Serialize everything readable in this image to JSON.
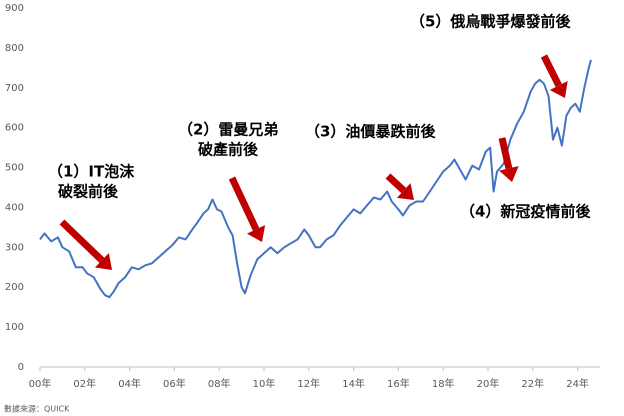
{
  "chart_data": {
    "type": "line",
    "annotations": [
      [
        "（1）IT泡沫",
        "破裂前後"
      ],
      [
        "（2）雷曼兄弟",
        "破產前後"
      ],
      [
        "（3）油價暴跌前後"
      ],
      [
        "（4）新冠疫情前後"
      ],
      [
        "（5）俄烏戰爭爆發前後"
      ]
    ],
    "source": "數據來源：QUICK",
    "xlim": [
      0,
      25
    ],
    "xticks": [
      {
        "value": 0,
        "label": "00年"
      },
      {
        "value": 2,
        "label": "02年"
      },
      {
        "value": 4,
        "label": "04年"
      },
      {
        "value": 6,
        "label": "06年"
      },
      {
        "value": 8,
        "label": "08年"
      },
      {
        "value": 10,
        "label": "10年"
      },
      {
        "value": 12,
        "label": "12年"
      },
      {
        "value": 14,
        "label": "14年"
      },
      {
        "value": 16,
        "label": "16年"
      },
      {
        "value": 18,
        "label": "18年"
      },
      {
        "value": 20,
        "label": "20年"
      },
      {
        "value": 22,
        "label": "22年"
      },
      {
        "value": 24,
        "label": "24年"
      }
    ],
    "ylim": [
      0,
      900
    ],
    "yticks": [
      0,
      100,
      200,
      300,
      400,
      500,
      600,
      700,
      800,
      900
    ],
    "x": [
      0.0,
      0.2,
      0.5,
      0.8,
      1.0,
      1.3,
      1.6,
      1.9,
      2.1,
      2.4,
      2.7,
      2.9,
      3.1,
      3.3,
      3.5,
      3.8,
      4.1,
      4.4,
      4.7,
      5.0,
      5.3,
      5.6,
      5.9,
      6.2,
      6.5,
      6.8,
      7.0,
      7.3,
      7.5,
      7.7,
      7.9,
      8.1,
      8.4,
      8.6,
      8.8,
      9.0,
      9.15,
      9.4,
      9.7,
      10.0,
      10.3,
      10.6,
      10.9,
      11.2,
      11.5,
      11.8,
      12.0,
      12.3,
      12.5,
      12.8,
      13.1,
      13.4,
      13.7,
      14.0,
      14.3,
      14.6,
      14.9,
      15.2,
      15.5,
      15.7,
      16.0,
      16.2,
      16.5,
      16.8,
      17.1,
      17.4,
      17.7,
      18.0,
      18.3,
      18.5,
      18.8,
      19.0,
      19.3,
      19.6,
      19.9,
      20.1,
      20.25,
      20.4,
      20.7,
      21.0,
      21.3,
      21.6,
      21.9,
      22.1,
      22.3,
      22.5,
      22.7,
      22.9,
      23.1,
      23.3,
      23.5,
      23.7,
      23.9,
      24.1,
      24.3,
      24.5,
      24.6
    ],
    "series": [
      {
        "color": "#4472c4",
        "values": [
          320,
          335,
          315,
          325,
          300,
          290,
          250,
          250,
          235,
          225,
          195,
          180,
          175,
          190,
          210,
          225,
          250,
          245,
          255,
          260,
          275,
          290,
          305,
          325,
          320,
          345,
          360,
          385,
          395,
          420,
          395,
          390,
          350,
          330,
          260,
          200,
          185,
          230,
          270,
          285,
          300,
          285,
          300,
          310,
          320,
          345,
          330,
          300,
          300,
          320,
          330,
          355,
          375,
          395,
          385,
          405,
          425,
          420,
          440,
          415,
          395,
          380,
          405,
          415,
          415,
          440,
          465,
          490,
          505,
          520,
          490,
          470,
          505,
          495,
          540,
          550,
          440,
          490,
          510,
          570,
          610,
          640,
          690,
          710,
          720,
          710,
          680,
          570,
          600,
          555,
          630,
          650,
          660,
          640,
          700,
          750,
          770
        ]
      }
    ]
  }
}
